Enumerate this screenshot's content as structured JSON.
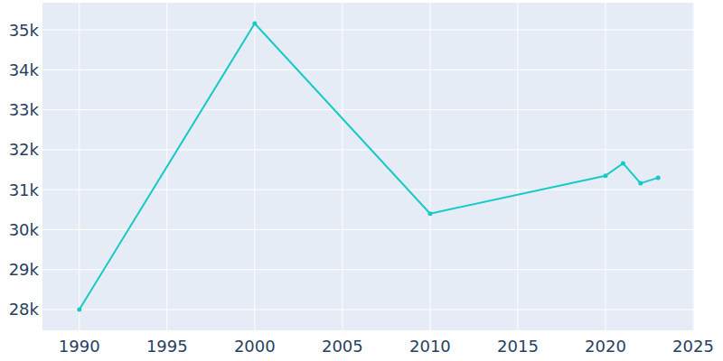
{
  "chart_data": {
    "type": "line",
    "x": [
      1990,
      2000,
      2010,
      2020,
      2021,
      2022,
      2023
    ],
    "values": [
      28000,
      35160,
      30400,
      31350,
      31660,
      31160,
      31300
    ],
    "color": "#19c9c6",
    "marker": "circle",
    "xlim": [
      1987.9,
      2025.05
    ],
    "xticks": [
      1990,
      1995,
      2000,
      2005,
      2010,
      2015,
      2020,
      2025
    ],
    "ylim": [
      27480,
      35680
    ],
    "yticks": [
      {
        "value": 28000,
        "label": "28k"
      },
      {
        "value": 29000,
        "label": "29k"
      },
      {
        "value": 30000,
        "label": "30k"
      },
      {
        "value": 31000,
        "label": "31k"
      },
      {
        "value": 32000,
        "label": "32k"
      },
      {
        "value": 33000,
        "label": "33k"
      },
      {
        "value": 34000,
        "label": "34k"
      },
      {
        "value": 35000,
        "label": "35k"
      }
    ],
    "grid": true
  }
}
